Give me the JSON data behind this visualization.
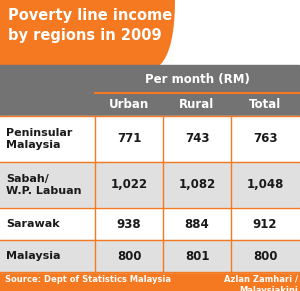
{
  "title_line1": "Poverty line income",
  "title_line2": "by regions in 2009",
  "header_group": "Per month (RM)",
  "col_headers": [
    "Urban",
    "Rural",
    "Total"
  ],
  "row_labels": [
    "Peninsular\nMalaysia",
    "Sabah/\nW.P. Labuan",
    "Sarawak",
    "Malaysia"
  ],
  "values": [
    [
      "771",
      "743",
      "763"
    ],
    [
      "1,022",
      "1,082",
      "1,048"
    ],
    [
      "938",
      "884",
      "912"
    ],
    [
      "800",
      "801",
      "800"
    ]
  ],
  "source_left": "Source: Dept of Statistics Malaysia",
  "source_right": "Azlan Zamhari /\nMalaysiakini",
  "orange": "#F47920",
  "dark_gray": "#737373",
  "white": "#FFFFFF",
  "alt_gray": "#E0E0E0",
  "text_dark": "#1A1A1A"
}
